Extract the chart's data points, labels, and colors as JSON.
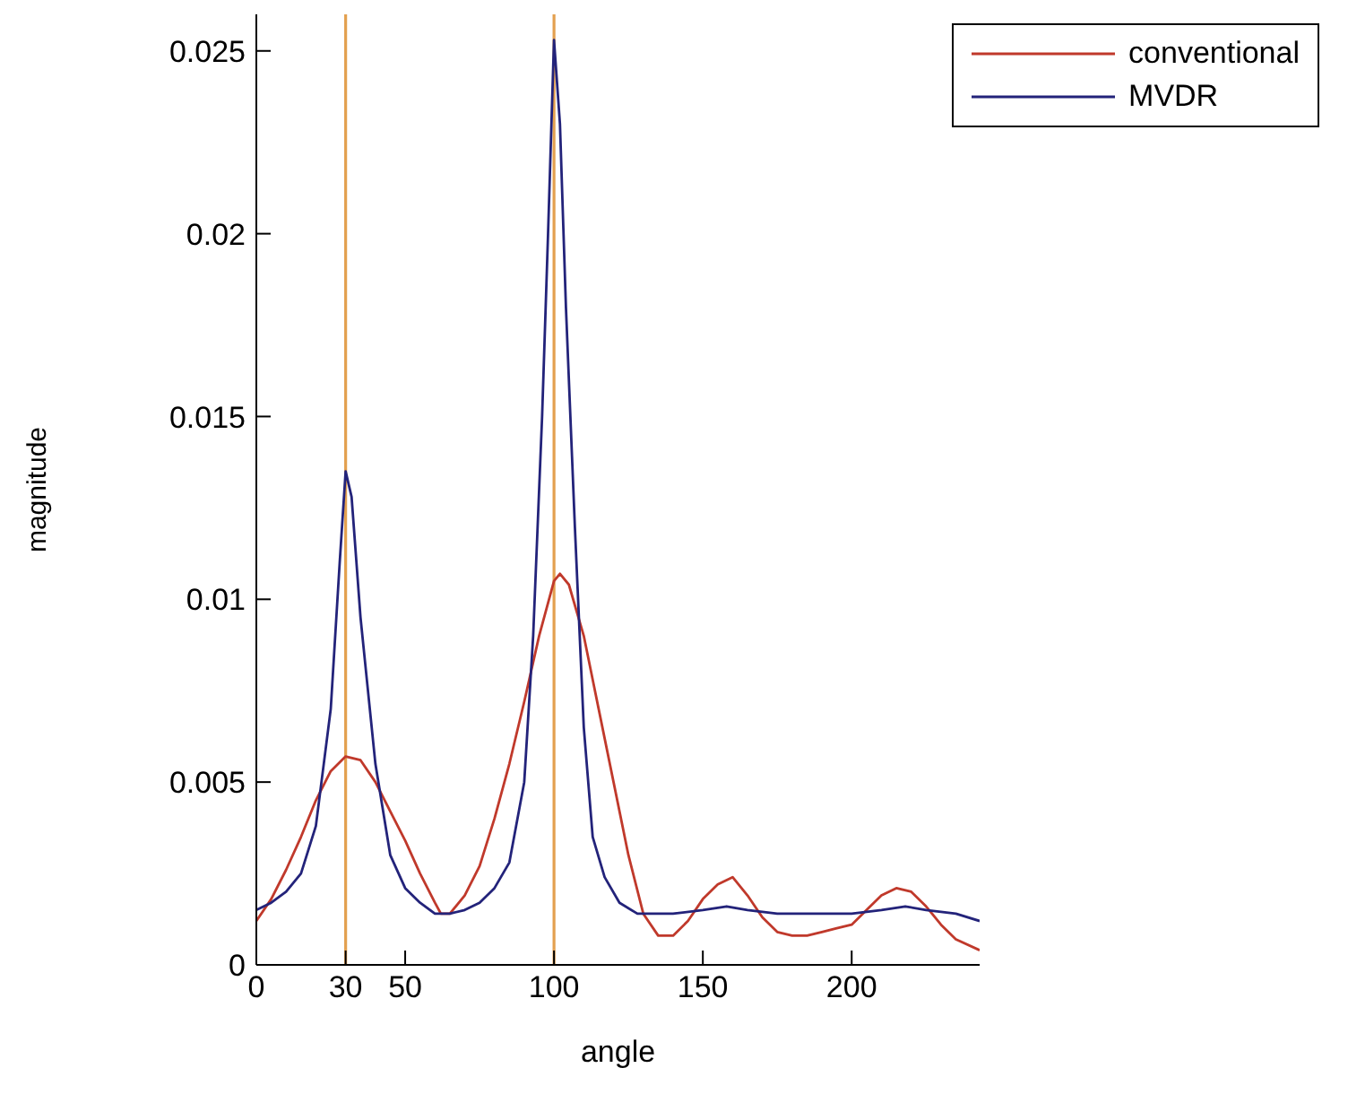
{
  "chart_data": {
    "type": "line",
    "xlabel": "angle",
    "ylabel": "magnitude",
    "xlim": [
      0,
      243
    ],
    "ylim": [
      0,
      0.026
    ],
    "xticks": [
      0,
      30,
      50,
      100,
      150,
      200
    ],
    "yticks": [
      0,
      0.005,
      0.01,
      0.015,
      0.02,
      0.025
    ],
    "grid": false,
    "legend": "top right",
    "marker": "none",
    "line_style": "solid",
    "series": [
      {
        "name": "conventional",
        "color": "#c0392b",
        "x": [
          0,
          5,
          10,
          15,
          20,
          25,
          30,
          35,
          40,
          45,
          50,
          55,
          60,
          62,
          65,
          70,
          75,
          80,
          85,
          90,
          95,
          100,
          102,
          105,
          110,
          115,
          120,
          125,
          130,
          135,
          140,
          145,
          150,
          155,
          160,
          165,
          170,
          175,
          180,
          185,
          190,
          195,
          200,
          205,
          210,
          215,
          220,
          225,
          230,
          235,
          243
        ],
        "values": [
          0.0012,
          0.0018,
          0.0026,
          0.0035,
          0.0045,
          0.0053,
          0.0057,
          0.0056,
          0.005,
          0.0042,
          0.0034,
          0.0025,
          0.0017,
          0.0014,
          0.0014,
          0.0019,
          0.0027,
          0.004,
          0.0055,
          0.0072,
          0.009,
          0.0105,
          0.0107,
          0.0104,
          0.009,
          0.007,
          0.005,
          0.003,
          0.0014,
          0.0008,
          0.0008,
          0.0012,
          0.0018,
          0.0022,
          0.0024,
          0.0019,
          0.0013,
          0.0009,
          0.0008,
          0.0008,
          0.0009,
          0.001,
          0.0011,
          0.0015,
          0.0019,
          0.0021,
          0.002,
          0.0016,
          0.0011,
          0.0007,
          0.0004
        ]
      },
      {
        "name": "MVDR",
        "color": "#23237a",
        "x": [
          0,
          5,
          10,
          15,
          20,
          25,
          28,
          30,
          32,
          35,
          40,
          45,
          50,
          55,
          60,
          65,
          70,
          75,
          80,
          85,
          90,
          93,
          96,
          98,
          100,
          102,
          104,
          107,
          110,
          113,
          117,
          122,
          128,
          140,
          150,
          158,
          165,
          175,
          200,
          210,
          218,
          225,
          235,
          243
        ],
        "values": [
          0.0015,
          0.0017,
          0.002,
          0.0025,
          0.0038,
          0.007,
          0.011,
          0.0135,
          0.0128,
          0.0095,
          0.0055,
          0.003,
          0.0021,
          0.0017,
          0.0014,
          0.0014,
          0.0015,
          0.0017,
          0.0021,
          0.0028,
          0.005,
          0.009,
          0.015,
          0.02,
          0.0253,
          0.023,
          0.018,
          0.012,
          0.0065,
          0.0035,
          0.0024,
          0.0017,
          0.0014,
          0.0014,
          0.0015,
          0.0016,
          0.0015,
          0.0014,
          0.0014,
          0.0015,
          0.0016,
          0.0015,
          0.0014,
          0.0012
        ]
      }
    ],
    "ref_lines": [
      {
        "axis": "x",
        "value": 30,
        "color": "#e3a04f"
      },
      {
        "axis": "x",
        "value": 100,
        "color": "#e3a04f"
      }
    ]
  }
}
